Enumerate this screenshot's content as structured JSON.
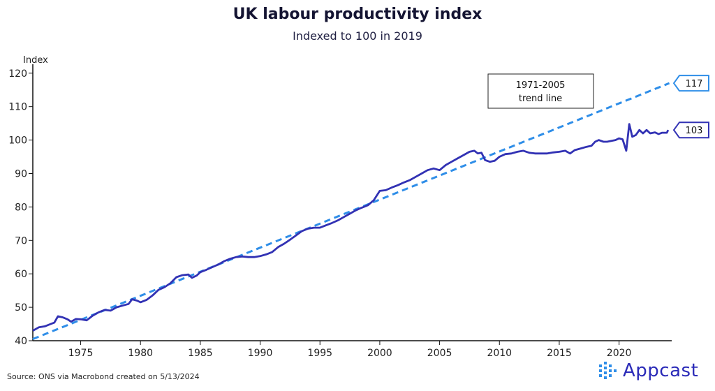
{
  "header": {
    "title": "UK labour productivity index",
    "subtitle": "Indexed to 100 in 2019"
  },
  "footer": {
    "source": "Source: ONS via Macrobond created on 5/13/2024",
    "brand": "Appcast"
  },
  "colors": {
    "series": "#3232b4",
    "trend": "#2f8ee8",
    "axis": "#111111"
  },
  "chart_data": {
    "type": "line",
    "title": "UK labour productivity index",
    "subtitle": "Indexed to 100 in 2019",
    "ylabel": "Index",
    "xlabel": "",
    "xlim": [
      1971,
      2024.4
    ],
    "ylim": [
      40,
      121
    ],
    "yticks": [
      40,
      50,
      60,
      70,
      80,
      90,
      100,
      110,
      120
    ],
    "xticks": [
      1975,
      1980,
      1985,
      1990,
      1995,
      2000,
      2005,
      2010,
      2015,
      2020
    ],
    "series": [
      {
        "name": "UK labour productivity index",
        "points": [
          [
            1971.0,
            43.0
          ],
          [
            1971.5,
            44.0
          ],
          [
            1972.0,
            44.3
          ],
          [
            1972.5,
            45.0
          ],
          [
            1972.8,
            45.4
          ],
          [
            1973.1,
            47.3
          ],
          [
            1973.5,
            47.0
          ],
          [
            1973.9,
            46.4
          ],
          [
            1974.2,
            45.7
          ],
          [
            1974.6,
            46.5
          ],
          [
            1975.0,
            46.4
          ],
          [
            1975.5,
            46.1
          ],
          [
            1976.0,
            47.5
          ],
          [
            1976.5,
            48.5
          ],
          [
            1977.0,
            49.2
          ],
          [
            1977.5,
            49.0
          ],
          [
            1978.0,
            50.0
          ],
          [
            1978.5,
            50.5
          ],
          [
            1979.0,
            51.0
          ],
          [
            1979.3,
            52.4
          ],
          [
            1979.7,
            52.0
          ],
          [
            1980.0,
            51.5
          ],
          [
            1980.5,
            52.2
          ],
          [
            1981.0,
            53.5
          ],
          [
            1981.5,
            55.2
          ],
          [
            1982.0,
            56.0
          ],
          [
            1982.5,
            57.2
          ],
          [
            1983.0,
            59.0
          ],
          [
            1983.5,
            59.6
          ],
          [
            1984.0,
            59.8
          ],
          [
            1984.3,
            58.8
          ],
          [
            1984.7,
            59.5
          ],
          [
            1985.0,
            60.5
          ],
          [
            1985.5,
            61.2
          ],
          [
            1986.0,
            62.0
          ],
          [
            1986.5,
            62.8
          ],
          [
            1987.0,
            63.8
          ],
          [
            1987.5,
            64.5
          ],
          [
            1988.0,
            65.0
          ],
          [
            1988.5,
            65.2
          ],
          [
            1989.0,
            65.0
          ],
          [
            1989.5,
            65.0
          ],
          [
            1990.0,
            65.3
          ],
          [
            1990.5,
            65.8
          ],
          [
            1991.0,
            66.5
          ],
          [
            1991.5,
            68.0
          ],
          [
            1992.0,
            69.0
          ],
          [
            1992.5,
            70.2
          ],
          [
            1993.0,
            71.5
          ],
          [
            1993.5,
            72.8
          ],
          [
            1994.0,
            73.5
          ],
          [
            1994.5,
            73.8
          ],
          [
            1995.0,
            73.8
          ],
          [
            1995.5,
            74.5
          ],
          [
            1996.0,
            75.2
          ],
          [
            1996.5,
            76.0
          ],
          [
            1997.0,
            77.0
          ],
          [
            1997.5,
            78.0
          ],
          [
            1998.0,
            79.0
          ],
          [
            1998.5,
            79.8
          ],
          [
            1999.0,
            80.5
          ],
          [
            1999.5,
            82.0
          ],
          [
            2000.0,
            84.8
          ],
          [
            2000.5,
            85.0
          ],
          [
            2001.0,
            85.8
          ],
          [
            2001.5,
            86.5
          ],
          [
            2002.0,
            87.3
          ],
          [
            2002.5,
            88.0
          ],
          [
            2003.0,
            89.0
          ],
          [
            2003.5,
            90.0
          ],
          [
            2004.0,
            91.0
          ],
          [
            2004.5,
            91.5
          ],
          [
            2005.0,
            91.0
          ],
          [
            2005.5,
            92.5
          ],
          [
            2006.0,
            93.5
          ],
          [
            2006.5,
            94.5
          ],
          [
            2007.0,
            95.5
          ],
          [
            2007.5,
            96.5
          ],
          [
            2007.9,
            96.8
          ],
          [
            2008.2,
            96.0
          ],
          [
            2008.5,
            96.2
          ],
          [
            2008.8,
            94.0
          ],
          [
            2009.2,
            93.5
          ],
          [
            2009.6,
            93.8
          ],
          [
            2010.0,
            95.0
          ],
          [
            2010.5,
            95.8
          ],
          [
            2011.0,
            96.0
          ],
          [
            2011.5,
            96.5
          ],
          [
            2012.0,
            96.8
          ],
          [
            2012.5,
            96.2
          ],
          [
            2013.0,
            96.0
          ],
          [
            2013.5,
            96.0
          ],
          [
            2014.0,
            96.0
          ],
          [
            2014.5,
            96.3
          ],
          [
            2015.0,
            96.5
          ],
          [
            2015.5,
            96.8
          ],
          [
            2015.9,
            96.0
          ],
          [
            2016.3,
            97.0
          ],
          [
            2016.8,
            97.5
          ],
          [
            2017.3,
            98.0
          ],
          [
            2017.7,
            98.3
          ],
          [
            2018.0,
            99.5
          ],
          [
            2018.3,
            100.0
          ],
          [
            2018.7,
            99.5
          ],
          [
            2019.0,
            99.5
          ],
          [
            2019.4,
            99.8
          ],
          [
            2019.7,
            100.0
          ],
          [
            2020.0,
            100.5
          ],
          [
            2020.3,
            100.2
          ],
          [
            2020.6,
            96.8
          ],
          [
            2020.85,
            104.8
          ],
          [
            2021.1,
            101.0
          ],
          [
            2021.4,
            101.5
          ],
          [
            2021.7,
            103.0
          ],
          [
            2022.0,
            102.0
          ],
          [
            2022.3,
            103.0
          ],
          [
            2022.6,
            102.0
          ],
          [
            2023.0,
            102.3
          ],
          [
            2023.3,
            101.8
          ],
          [
            2023.6,
            102.2
          ],
          [
            2024.0,
            102.2
          ],
          [
            2024.1,
            103.0
          ]
        ],
        "end_label": "103"
      },
      {
        "name": "1971-2005 trend line",
        "style": "dashed",
        "points": [
          [
            1971.0,
            40.5
          ],
          [
            2024.2,
            117.0
          ]
        ],
        "end_label": "117"
      }
    ],
    "annotations": [
      {
        "text_line1": "1971-2005",
        "text_line2": "trend line"
      }
    ]
  }
}
